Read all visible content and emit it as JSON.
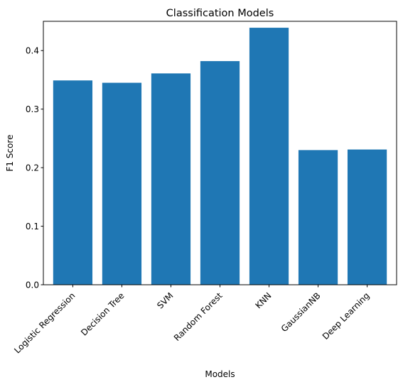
{
  "chart_data": {
    "type": "bar",
    "title": "Classification Models",
    "xlabel": "Models",
    "ylabel": "F1 Score",
    "categories": [
      "Logistic Regression",
      "Decision Tree",
      "SVM",
      "Random Forest",
      "KNN",
      "GaussianNB",
      "Deep Learning"
    ],
    "values": [
      0.349,
      0.345,
      0.361,
      0.382,
      0.439,
      0.23,
      0.231
    ],
    "ylim": [
      0,
      0.45
    ],
    "yticks": [
      "0.0",
      "0.1",
      "0.2",
      "0.3",
      "0.4"
    ],
    "bar_color": "#1f77b4",
    "grid": false,
    "legend": "none"
  }
}
